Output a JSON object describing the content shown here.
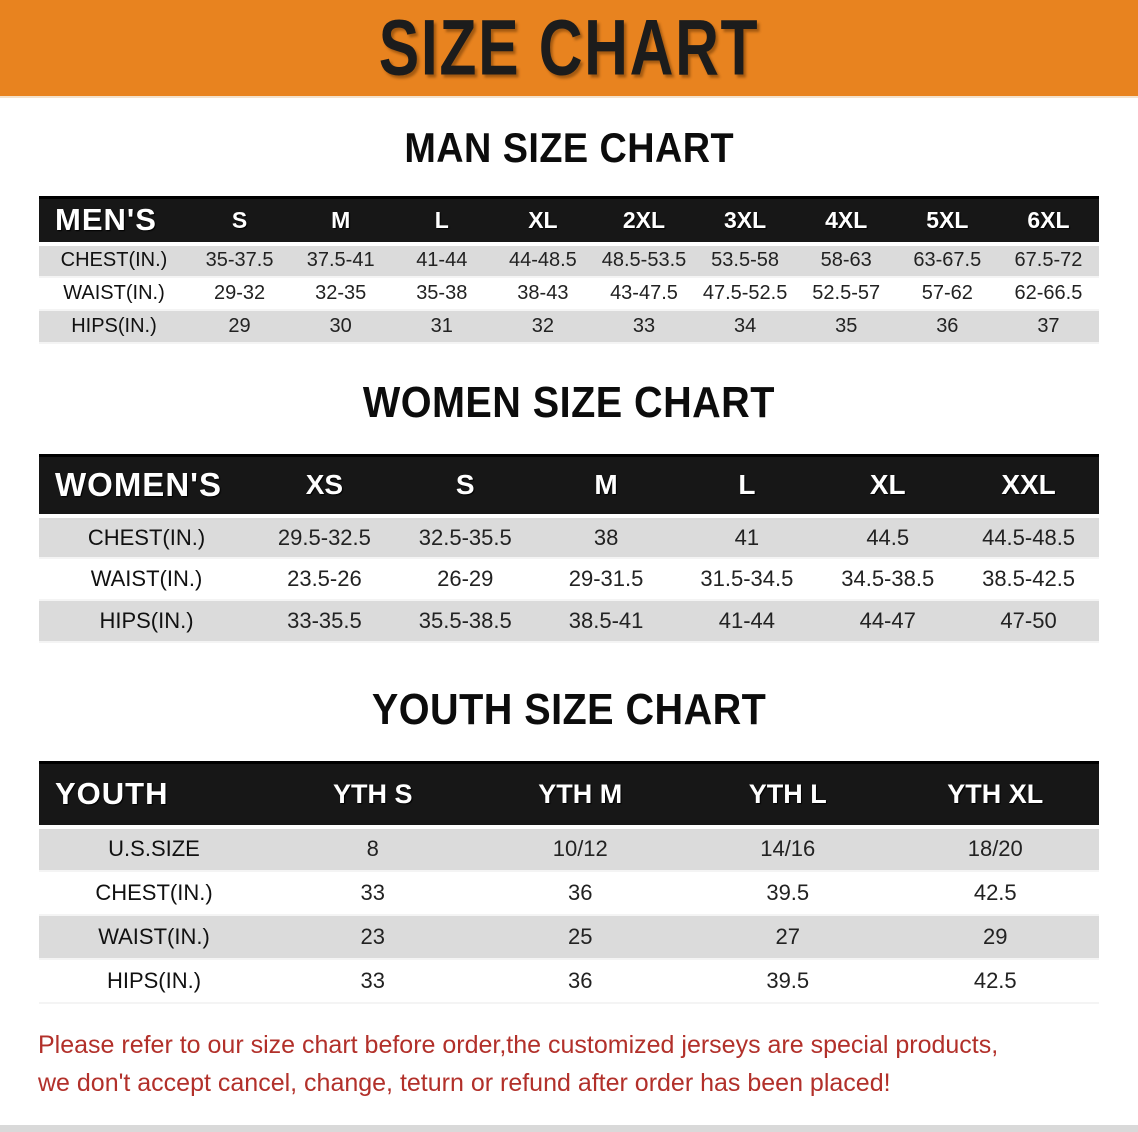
{
  "banner": {
    "title": "SIZE CHART",
    "bg_color": "#E8831F",
    "text_color": "#1c1c1c"
  },
  "colors": {
    "table_header_bg": "#171717",
    "table_header_text": "#ffffff",
    "row_stripe": "#DBDBDB",
    "row_plain": "#ffffff",
    "disclaimer_text": "#B2302A"
  },
  "sections": [
    {
      "heading": "MAN SIZE CHART",
      "table": {
        "label": "MEN'S",
        "columns": [
          "S",
          "M",
          "L",
          "XL",
          "2XL",
          "3XL",
          "4XL",
          "5XL",
          "6XL"
        ],
        "rows": [
          {
            "label": "CHEST(IN.)",
            "values": [
              "35-37.5",
              "37.5-41",
              "41-44",
              "44-48.5",
              "48.5-53.5",
              "53.5-58",
              "58-63",
              "63-67.5",
              "67.5-72"
            ]
          },
          {
            "label": "WAIST(IN.)",
            "values": [
              "29-32",
              "32-35",
              "35-38",
              "38-43",
              "43-47.5",
              "47.5-52.5",
              "52.5-57",
              "57-62",
              "62-66.5"
            ]
          },
          {
            "label": "HIPS(IN.)",
            "values": [
              "29",
              "30",
              "31",
              "32",
              "33",
              "34",
              "35",
              "36",
              "37"
            ]
          }
        ]
      }
    },
    {
      "heading": "WOMEN SIZE CHART",
      "table": {
        "label": "WOMEN'S",
        "columns": [
          "XS",
          "S",
          "M",
          "L",
          "XL",
          "XXL"
        ],
        "rows": [
          {
            "label": "CHEST(IN.)",
            "values": [
              "29.5-32.5",
              "32.5-35.5",
              "38",
              "41",
              "44.5",
              "44.5-48.5"
            ]
          },
          {
            "label": "WAIST(IN.)",
            "values": [
              "23.5-26",
              "26-29",
              "29-31.5",
              "31.5-34.5",
              "34.5-38.5",
              "38.5-42.5"
            ]
          },
          {
            "label": "HIPS(IN.)",
            "values": [
              "33-35.5",
              "35.5-38.5",
              "38.5-41",
              "41-44",
              "44-47",
              "47-50"
            ]
          }
        ]
      }
    },
    {
      "heading": "YOUTH SIZE CHART",
      "table": {
        "label": "YOUTH",
        "columns": [
          "YTH S",
          "YTH M",
          "YTH L",
          "YTH XL"
        ],
        "rows": [
          {
            "label": "U.S.SIZE",
            "values": [
              "8",
              "10/12",
              "14/16",
              "18/20"
            ]
          },
          {
            "label": "CHEST(IN.)",
            "values": [
              "33",
              "36",
              "39.5",
              "42.5"
            ]
          },
          {
            "label": "WAIST(IN.)",
            "values": [
              "23",
              "25",
              "27",
              "29"
            ]
          },
          {
            "label": "HIPS(IN.)",
            "values": [
              "33",
              "36",
              "39.5",
              "42.5"
            ]
          }
        ]
      }
    }
  ],
  "disclaimer": {
    "line1": "Please refer to our size chart before order,the customized jerseys are special products,",
    "line2": "we don't accept cancel, change, teturn or refund after order has been placed!"
  }
}
